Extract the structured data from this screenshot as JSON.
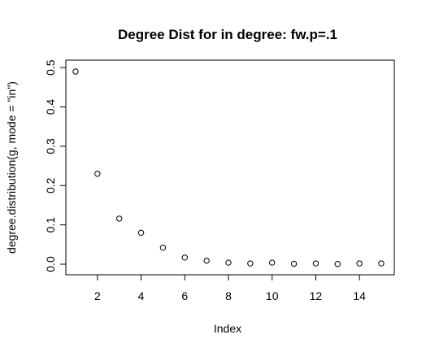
{
  "chart_data": {
    "type": "scatter",
    "title": "Degree Dist for in degree: fw.p=.1",
    "xlabel": "Index",
    "ylabel": "degree.distribution(g, mode = \"in\")",
    "xlim": [
      1,
      15
    ],
    "ylim": [
      0,
      0.49
    ],
    "x_ticks": [
      2,
      4,
      6,
      8,
      10,
      12,
      14
    ],
    "y_ticks": [
      0.0,
      0.1,
      0.2,
      0.3,
      0.4,
      0.5
    ],
    "x_tick_labels": [
      "2",
      "4",
      "6",
      "8",
      "10",
      "12",
      "14"
    ],
    "y_tick_labels": [
      "0.0",
      "0.1",
      "0.2",
      "0.3",
      "0.4",
      "0.5"
    ],
    "x": [
      1,
      2,
      3,
      4,
      5,
      6,
      7,
      8,
      9,
      10,
      11,
      12,
      13,
      14,
      15
    ],
    "values": [
      0.49,
      0.23,
      0.116,
      0.08,
      0.042,
      0.017,
      0.009,
      0.004,
      0.002,
      0.004,
      0.001,
      0.002,
      0.0005,
      0.002,
      0.002
    ],
    "marker": "open-circle",
    "grid": false,
    "legend": "none"
  }
}
